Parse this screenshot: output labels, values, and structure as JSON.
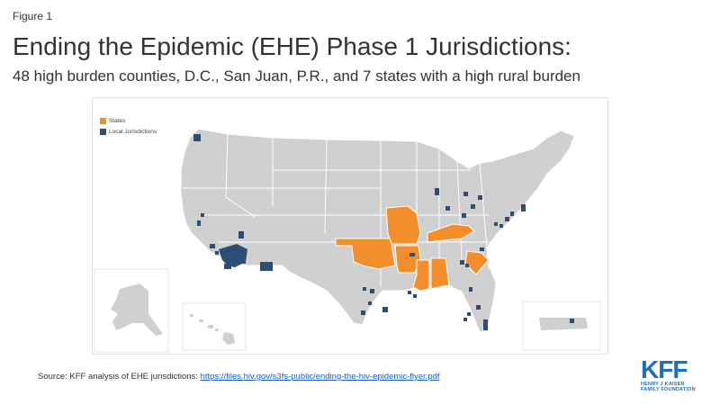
{
  "figure_label": "Figure 1",
  "title": "Ending the Epidemic (EHE) Phase 1 Jurisdictions:",
  "subtitle": "48 high burden counties, D.C., San Juan, P.R., and 7 states with a high rural burden",
  "legend": {
    "states_label": "States",
    "local_label": "Local Jurisdictions"
  },
  "colors": {
    "states": "#F28E2B",
    "local": "#2C4E74",
    "base": "#D0D0D0",
    "border": "#ffffff"
  },
  "highlighted_states": [
    "Missouri",
    "Oklahoma",
    "Arkansas",
    "Kentucky",
    "Mississippi",
    "Alabama",
    "South Carolina"
  ],
  "source": {
    "text": "Source: KFF analysis of EHE jurisdictions: ",
    "link": "https://files.hiv.gov/s3fs-public/ending-the-hiv-epidemic-flyer.pdf"
  },
  "logo": {
    "text": "KFF",
    "org_line1": "HENRY J KAISER",
    "org_line2": "FAMILY FOUNDATION"
  }
}
